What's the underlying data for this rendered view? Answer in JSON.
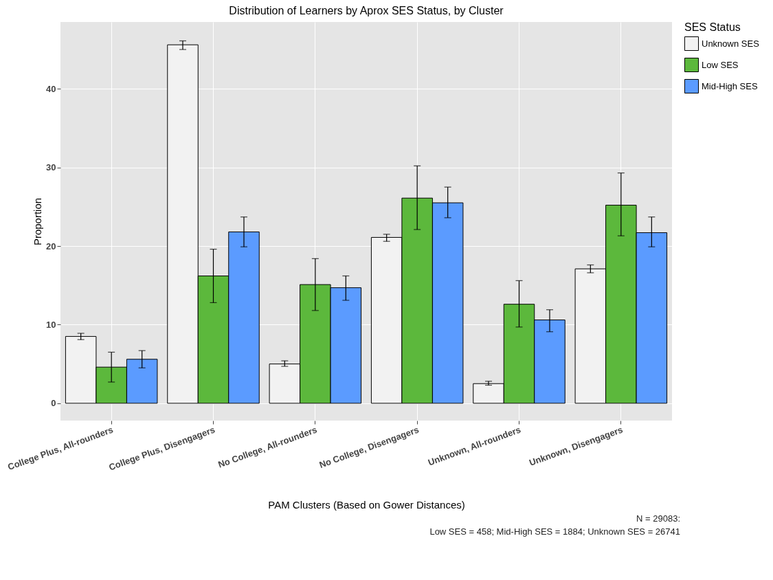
{
  "chart_data": {
    "type": "bar",
    "title": "Distribution of Learners by Aprox SES Status, by Cluster",
    "xlabel": "PAM Clusters (Based on Gower Distances)",
    "ylabel": "Proportion",
    "legend_title": "SES Status",
    "categories": [
      "College Plus, All-rounders",
      "College Plus, Disengagers",
      "No College, All-rounders",
      "No College, Disengagers",
      "Unknown, All-rounders",
      "Unknown, Disengagers"
    ],
    "series": [
      {
        "name": "Unknown SES",
        "color": "#f2f2f2",
        "values": [
          8.5,
          45.6,
          5.0,
          21.1,
          2.5,
          17.1
        ],
        "errors": [
          [
            8.1,
            8.9
          ],
          [
            45.0,
            46.1
          ],
          [
            4.7,
            5.4
          ],
          [
            20.6,
            21.5
          ],
          [
            2.3,
            2.8
          ],
          [
            16.6,
            17.6
          ]
        ]
      },
      {
        "name": "Low SES",
        "color": "#5cb83c",
        "values": [
          4.6,
          16.2,
          15.1,
          26.1,
          12.6,
          25.2
        ],
        "errors": [
          [
            2.7,
            6.5
          ],
          [
            12.8,
            19.6
          ],
          [
            11.8,
            18.4
          ],
          [
            22.1,
            30.2
          ],
          [
            9.7,
            15.6
          ],
          [
            21.3,
            29.3
          ]
        ]
      },
      {
        "name": "Mid-High SES",
        "color": "#5b9bff",
        "values": [
          5.6,
          21.8,
          14.7,
          25.5,
          10.6,
          21.7
        ],
        "errors": [
          [
            4.5,
            6.7
          ],
          [
            19.9,
            23.7
          ],
          [
            13.1,
            16.2
          ],
          [
            23.6,
            27.5
          ],
          [
            9.1,
            11.9
          ],
          [
            19.9,
            23.7
          ]
        ]
      }
    ],
    "ylim": [
      -2.2,
      48.5
    ],
    "yticks": [
      0,
      10,
      20,
      30,
      40
    ],
    "grid": true,
    "legend": "right",
    "annotations": [
      "N = 29083:",
      "Low SES = 458; Mid-High SES = 1884; Unknown SES = 26741"
    ]
  }
}
